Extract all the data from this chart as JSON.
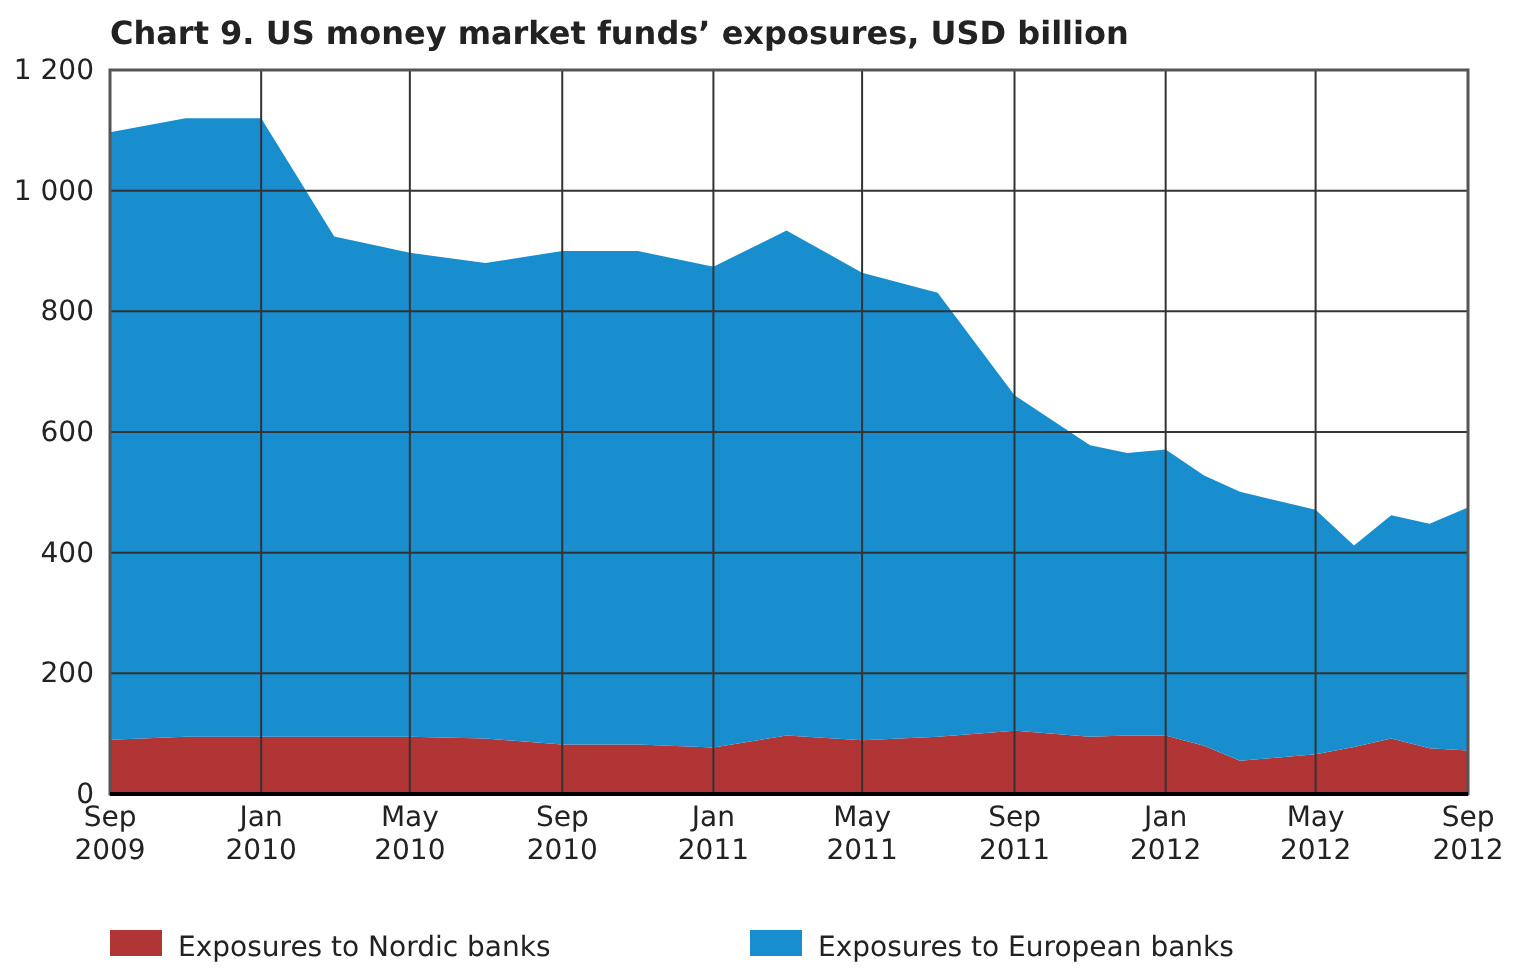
{
  "chart_data": {
    "type": "area",
    "stacked": true,
    "title": "Chart 9. US money market funds’ exposures, USD billion",
    "x": [
      "2009-09",
      "2009-11",
      "2010-01",
      "2010-03",
      "2010-05",
      "2010-07",
      "2010-09",
      "2010-11",
      "2011-01",
      "2011-03",
      "2011-05",
      "2011-07",
      "2011-09",
      "2011-11",
      "2011-12",
      "2012-01",
      "2012-02",
      "2012-03",
      "2012-05",
      "2012-06",
      "2012-07",
      "2012-08",
      "2012-09"
    ],
    "series": [
      {
        "name": "Exposures to Nordic banks",
        "color": "#b23535",
        "values": [
          90,
          95,
          95,
          95,
          95,
          92,
          82,
          82,
          77,
          97,
          89,
          95,
          105,
          95,
          97,
          97,
          80,
          55,
          66,
          78,
          92,
          76,
          72
        ]
      },
      {
        "name": "Exposures to European banks",
        "color": "#188ece",
        "values": [
          1007,
          1025,
          1025,
          829,
          802,
          788,
          818,
          818,
          797,
          837,
          775,
          736,
          556,
          483,
          468,
          474,
          448,
          446,
          405,
          334,
          370,
          372,
          403
        ]
      }
    ],
    "xlim": [
      "2009-09",
      "2012-09"
    ],
    "xticks": [
      {
        "value": "2009-09",
        "label": "Sep 2009"
      },
      {
        "value": "2010-01",
        "label": "Jan 2010"
      },
      {
        "value": "2010-05",
        "label": "May 2010"
      },
      {
        "value": "2010-09",
        "label": "Sep 2010"
      },
      {
        "value": "2011-01",
        "label": "Jan 2011"
      },
      {
        "value": "2011-05",
        "label": "May 2011"
      },
      {
        "value": "2011-09",
        "label": "Sep 2011"
      },
      {
        "value": "2012-01",
        "label": "Jan 2012"
      },
      {
        "value": "2012-05",
        "label": "May 2012"
      },
      {
        "value": "2012-09",
        "label": "Sep 2012"
      }
    ],
    "ylim": [
      0,
      1200
    ],
    "yticks": [
      0,
      200,
      400,
      600,
      800,
      {
        "value": 1000,
        "label": "1 000"
      },
      {
        "value": 1200,
        "label": "1 200"
      }
    ],
    "grid": true,
    "legend": "bottom"
  }
}
